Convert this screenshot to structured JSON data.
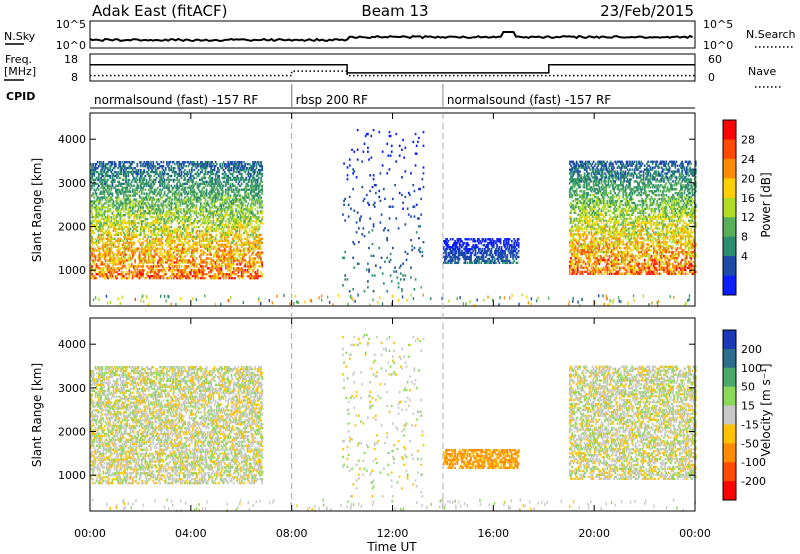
{
  "header": {
    "title": "Adak East (fitACF)",
    "beam": "Beam 13",
    "date": "23/Feb/2015"
  },
  "noise_panel": {
    "left_label": "N.Sky",
    "right_label": "N.Search",
    "left_ticks": [
      "10^5",
      "10^0"
    ],
    "right_ticks": [
      "10^5",
      "10^0"
    ]
  },
  "freq_panel": {
    "left_label_1": "Freq.",
    "left_label_2": "[MHz]",
    "right_label": "Nave",
    "left_ticks": [
      "18",
      "8"
    ],
    "right_ticks": [
      "60",
      "0"
    ]
  },
  "cpid": {
    "label": "CPID",
    "segments": [
      {
        "name": "normalsound (fast) -157 RF",
        "start_hour": 0,
        "end_hour": 8
      },
      {
        "name": "rbsp 200 RF",
        "start_hour": 8,
        "end_hour": 14
      },
      {
        "name": "normalsound (fast) -157 RF",
        "start_hour": 14,
        "end_hour": 24
      }
    ]
  },
  "power_colorbar": {
    "label": "Power [dB]",
    "ticks": [
      "28",
      "24",
      "20",
      "16",
      "12",
      "8",
      "4"
    ],
    "colors": [
      "#ff0000",
      "#ff4a00",
      "#ff8c00",
      "#ffd000",
      "#b0dc28",
      "#5ab05a",
      "#2c8c6e",
      "#1c4ca8",
      "#0a1eff"
    ]
  },
  "velocity_colorbar": {
    "label": "Velocity [m s⁻¹]",
    "ticks": [
      "200",
      "100",
      "50",
      "15",
      "-15",
      "-50",
      "-100",
      "-200"
    ],
    "colors": [
      "#1a3ab8",
      "#2c6e8c",
      "#4aa86a",
      "#8cd85a",
      "#c8c8c8",
      "#ffc300",
      "#ff8c00",
      "#ff4a00",
      "#ff0000"
    ]
  },
  "chart_data": {
    "type": "heatmap",
    "xlabel": "Time UT",
    "ylabel": "Slant Range [km]",
    "x_ticks": [
      "00:00",
      "04:00",
      "08:00",
      "12:00",
      "16:00",
      "20:00",
      "00:00"
    ],
    "y_ticks": [
      "1000",
      "2000",
      "3000",
      "4000"
    ],
    "xlim_hours": [
      0,
      24
    ],
    "ylim_km": [
      180,
      4600
    ],
    "grid": false,
    "mode_change_hours": [
      8,
      14
    ],
    "panels": [
      {
        "name": "Power",
        "unit": "dB",
        "echo_regions": [
          {
            "start_hour": 0.0,
            "end_hour": 6.8,
            "range_km": [
              800,
              3500
            ],
            "peak_value": 28
          },
          {
            "start_hour": 10.0,
            "end_hour": 13.2,
            "range_km": [
              500,
              4200
            ],
            "peak_value": 10
          },
          {
            "start_hour": 14.0,
            "end_hour": 17.0,
            "range_km": [
              1150,
              1700
            ],
            "peak_value": 8
          },
          {
            "start_hour": 19.0,
            "end_hour": 24.0,
            "range_km": [
              900,
              3500
            ],
            "peak_value": 28
          }
        ]
      },
      {
        "name": "Velocity",
        "unit": "m s^-1",
        "echo_regions": [
          {
            "start_hour": 0.0,
            "end_hour": 6.8,
            "range_km": [
              800,
              3500
            ],
            "typical_value": 0
          },
          {
            "start_hour": 10.0,
            "end_hour": 13.2,
            "range_km": [
              500,
              4200
            ],
            "typical_value": 0
          },
          {
            "start_hour": 14.0,
            "end_hour": 17.0,
            "range_km": [
              1150,
              1600
            ],
            "typical_value": -60
          },
          {
            "start_hour": 19.0,
            "end_hour": 24.0,
            "range_km": [
              900,
              3500
            ],
            "typical_value": 0
          }
        ]
      }
    ],
    "noise_sky_level": [
      0.9,
      1.0,
      1.1,
      1.0
    ],
    "frequency_MHz": [
      {
        "start_hour": 0,
        "end_hour": 10.2,
        "value": 14
      },
      {
        "start_hour": 10.2,
        "end_hour": 18.2,
        "value": 11
      },
      {
        "start_hour": 18.2,
        "end_hour": 24,
        "value": 14
      }
    ],
    "nave": [
      {
        "start_hour": 0,
        "end_hour": 8,
        "value": 12
      },
      {
        "start_hour": 8,
        "end_hour": 10.2,
        "value": 22
      },
      {
        "start_hour": 10.2,
        "end_hour": 24,
        "value": 12
      }
    ]
  }
}
